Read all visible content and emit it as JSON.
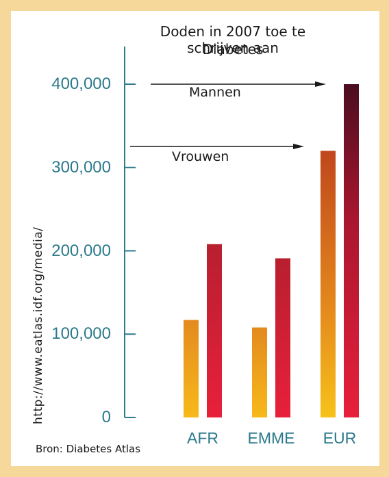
{
  "chart_data": {
    "type": "bar",
    "title": "Doden in 2007 toe te schrijven aan",
    "subtitle": "Diabetes",
    "categories": [
      "AFR",
      "EMME",
      "EUR"
    ],
    "series": [
      {
        "name": "Vrouwen",
        "values": [
          117000,
          108000,
          320000
        ],
        "color_top": "#e38a1f",
        "color_bottom": "#f7b91a"
      },
      {
        "name": "Mannen",
        "values": [
          208000,
          191000,
          400000
        ],
        "color_top": "#b81f2f",
        "color_bottom": "#e8203a"
      }
    ],
    "yticks": [
      "400,000",
      "300,000",
      "200,000",
      "100,000",
      "0"
    ],
    "ytick_values": [
      400000,
      300000,
      200000,
      100000,
      0
    ],
    "ylim": [
      0,
      400000
    ],
    "grid": false
  },
  "source": "Bron: Diabetes Atlas",
  "url": "http://www.eatlas.idf.org/media/",
  "colors": {
    "axis": "#2c7a8c",
    "frame": "#f5d89a"
  }
}
